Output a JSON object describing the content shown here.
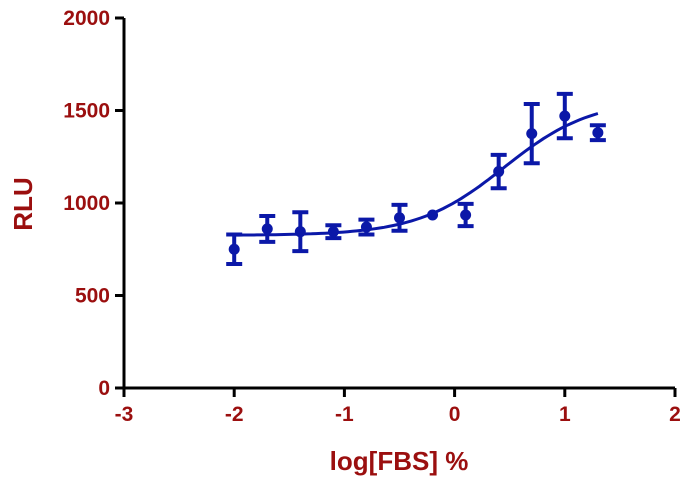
{
  "colors": {
    "axis_text": "#9b0f0f",
    "series": "#0b18a8",
    "axis_line": "#000000"
  },
  "chart_data": {
    "type": "scatter",
    "xlabel": "log[FBS] %",
    "ylabel": "RLU",
    "xlim": [
      -3,
      2
    ],
    "ylim": [
      0,
      2000
    ],
    "x_ticks": [
      -3,
      -2,
      -1,
      0,
      1,
      2
    ],
    "y_ticks": [
      0,
      500,
      1000,
      1500,
      2000
    ],
    "x_tick_labels": [
      "-3",
      "-2",
      "-1",
      "0",
      "1",
      "2"
    ],
    "y_tick_labels": [
      "0",
      "500",
      "1000",
      "1500",
      "2000"
    ],
    "grid": false,
    "legend": "none",
    "series": [
      {
        "marker": "circle",
        "error_bars": true,
        "points": [
          {
            "x": -2.0,
            "y": 750,
            "err": 80
          },
          {
            "x": -1.7,
            "y": 860,
            "err": 70
          },
          {
            "x": -1.4,
            "y": 845,
            "err": 105
          },
          {
            "x": -1.1,
            "y": 845,
            "err": 35
          },
          {
            "x": -0.8,
            "y": 870,
            "err": 40
          },
          {
            "x": -0.5,
            "y": 920,
            "err": 70
          },
          {
            "x": -0.2,
            "y": 935,
            "err": 0
          },
          {
            "x": 0.1,
            "y": 935,
            "err": 60
          },
          {
            "x": 0.4,
            "y": 1170,
            "err": 90
          },
          {
            "x": 0.7,
            "y": 1375,
            "err": 160
          },
          {
            "x": 1.0,
            "y": 1470,
            "err": 120
          },
          {
            "x": 1.3,
            "y": 1380,
            "err": 40
          }
        ]
      }
    ],
    "fit_curve": {
      "type": "sigmoidal dose-response",
      "bottom": 825,
      "top": 1560,
      "logEC50": 0.45,
      "hill_slope": 1.1,
      "x_range": [
        -2.0,
        1.3
      ]
    }
  }
}
